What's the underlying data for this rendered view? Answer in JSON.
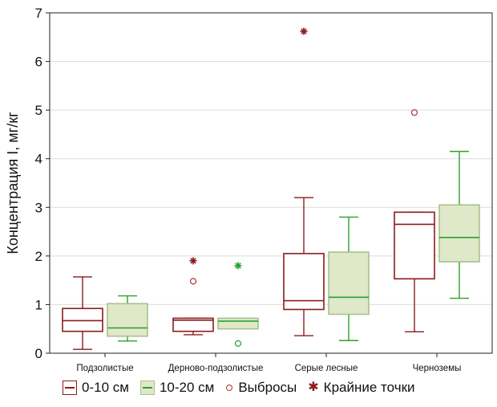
{
  "chart_data": {
    "type": "boxplot",
    "ylabel": "Концентрация I, мг/кг",
    "ylim": [
      0,
      7
    ],
    "yticks": [
      "0",
      "1",
      "2",
      "3",
      "4",
      "5",
      "6",
      "7"
    ],
    "grid": true,
    "categories": [
      "Подзолистые",
      "Дерново-подзолистые",
      "Серые лесные",
      "Черноземы"
    ],
    "series": [
      {
        "name": "0-10 см",
        "color": "#8b1c1c",
        "fill": "#ffffff",
        "median_color": "#8b1c1c",
        "boxes": [
          {
            "whisker_low": 0.08,
            "q1": 0.45,
            "median": 0.67,
            "q3": 0.92,
            "whisker_high": 1.57,
            "outliers": [],
            "extremes": []
          },
          {
            "whisker_low": 0.38,
            "q1": 0.45,
            "median": 0.68,
            "q3": 0.72,
            "whisker_high": 0.72,
            "outliers": [
              1.48
            ],
            "extremes": [
              1.9
            ]
          },
          {
            "whisker_low": 0.36,
            "q1": 0.9,
            "median": 1.08,
            "q3": 2.05,
            "whisker_high": 3.2,
            "outliers": [],
            "extremes": [
              6.62
            ]
          },
          {
            "whisker_low": 0.44,
            "q1": 1.53,
            "median": 2.65,
            "q3": 2.9,
            "whisker_high": 2.9,
            "outliers": [
              4.95
            ],
            "extremes": []
          }
        ]
      },
      {
        "name": "10-20 см",
        "color": "#2ca02c",
        "fill": "#dfe8c9",
        "median_color": "#2ca02c",
        "boxes": [
          {
            "whisker_low": 0.25,
            "q1": 0.35,
            "median": 0.52,
            "q3": 1.02,
            "whisker_high": 1.18,
            "outliers": [],
            "extremes": []
          },
          {
            "whisker_low": 0.5,
            "q1": 0.5,
            "median": 0.66,
            "q3": 0.72,
            "whisker_high": 0.72,
            "outliers": [
              0.2
            ],
            "extremes": [
              1.8
            ]
          },
          {
            "whisker_low": 0.26,
            "q1": 0.8,
            "median": 1.15,
            "q3": 2.08,
            "whisker_high": 2.8,
            "outliers": [],
            "extremes": []
          },
          {
            "whisker_low": 1.13,
            "q1": 1.88,
            "median": 2.38,
            "q3": 3.05,
            "whisker_high": 4.15,
            "outliers": [],
            "extremes": []
          }
        ]
      }
    ],
    "legend": {
      "position": "bottom",
      "series_a": "0-10 см",
      "series_b": "10-20 см",
      "outliers": "Выбросы",
      "extremes": "Крайние точки"
    }
  }
}
